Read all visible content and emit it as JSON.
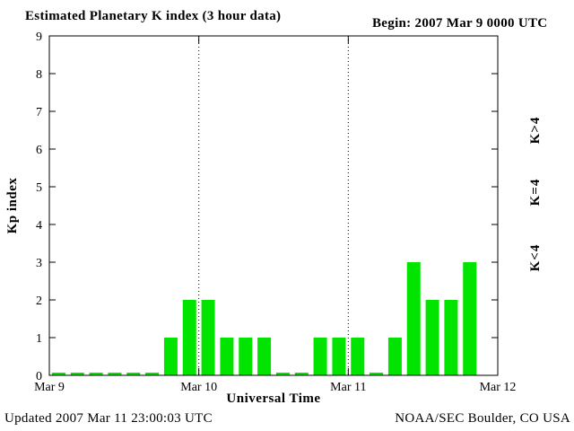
{
  "header": {
    "title": "Estimated Planetary K index (3 hour data)",
    "begin_label": "Begin:  2007 Mar 9 0000 UTC"
  },
  "footer": {
    "updated": "Updated 2007 Mar 11 23:00:03 UTC",
    "source": "NOAA/SEC Boulder, CO USA"
  },
  "axes": {
    "y_label": "Kp index",
    "x_label": "Universal Time",
    "y_ticks": [
      0,
      1,
      2,
      3,
      4,
      5,
      6,
      7,
      8,
      9
    ],
    "x_ticks": [
      "Mar 9",
      "Mar 10",
      "Mar 11",
      "Mar 12"
    ]
  },
  "legend": [
    {
      "label": "K>4",
      "color": "#ff0000"
    },
    {
      "label": "K=4",
      "color": "#ffb400"
    },
    {
      "label": "K<4",
      "color": "#00e400"
    }
  ],
  "chart_data": {
    "type": "bar",
    "title": "Estimated Planetary K index (3 hour data)",
    "subtitle": "Begin: 2007 Mar 9 0000 UTC",
    "xlabel": "Universal Time",
    "ylabel": "Kp index",
    "ylim": [
      0,
      9
    ],
    "interval_hours": 3,
    "bars_per_day": 8,
    "grid": "dotted vertical lines at day boundaries",
    "legend_position": "right, rotated 90deg",
    "color_rule": {
      "lt4": "#00e400",
      "eq4": "#ffb400",
      "gt4": "#ff0000"
    },
    "days": [
      {
        "label": "Mar 9",
        "values": [
          0,
          0,
          0,
          0,
          0,
          0,
          1,
          2
        ]
      },
      {
        "label": "Mar 10",
        "values": [
          2,
          1,
          1,
          1,
          0,
          0,
          1,
          1
        ]
      },
      {
        "label": "Mar 11",
        "values": [
          1,
          0,
          1,
          3,
          2,
          2,
          3,
          null
        ]
      }
    ],
    "updated": "Updated 2007 Mar 11 23:00:03 UTC",
    "source": "NOAA/SEC Boulder, CO USA"
  }
}
